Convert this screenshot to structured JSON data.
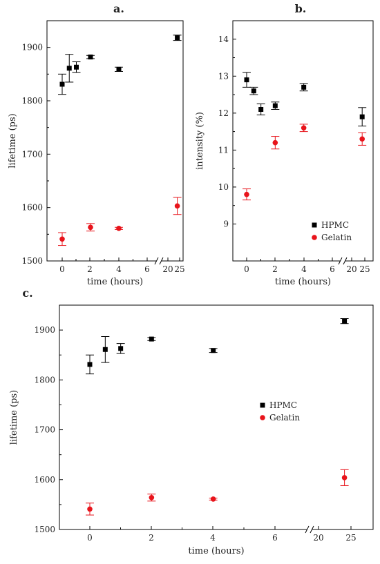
{
  "chart_data": [
    {
      "panel": "a.",
      "type": "scatter",
      "xlabel": "time (hours)",
      "ylabel": "lifetime (ps)",
      "ylim": [
        1500,
        1950
      ],
      "x_ticks": [
        "0",
        "2",
        "4",
        "6",
        "20",
        "25"
      ],
      "y_ticks": [
        1500,
        1600,
        1700,
        1800,
        1900
      ],
      "broken_x_axis": true,
      "error_bars": true,
      "series": [
        {
          "color": "#000000",
          "marker": "square",
          "points": [
            {
              "x": 0,
              "y": 1831,
              "err": 19
            },
            {
              "x": 0.5,
              "y": 1861,
              "err": 26
            },
            {
              "x": 1,
              "y": 1863,
              "err": 10
            },
            {
              "x": 2,
              "y": 1882,
              "err": 3
            },
            {
              "x": 4,
              "y": 1859,
              "err": 4
            },
            {
              "x": 24,
              "y": 1918,
              "err": 5
            }
          ]
        },
        {
          "color": "#e8141b",
          "marker": "circle",
          "points": [
            {
              "x": 0,
              "y": 1541,
              "err": 12
            },
            {
              "x": 2,
              "y": 1563,
              "err": 7
            },
            {
              "x": 4,
              "y": 1561,
              "err": 2
            },
            {
              "x": 24,
              "y": 1603,
              "err": 16
            }
          ]
        }
      ]
    },
    {
      "panel": "b.",
      "type": "scatter",
      "xlabel": "time (hours)",
      "ylabel": "intensity (%)",
      "ylim": [
        8,
        14.5
      ],
      "x_ticks": [
        "0",
        "2",
        "4",
        "6",
        "20",
        "25"
      ],
      "y_ticks": [
        9,
        10,
        11,
        12,
        13,
        14
      ],
      "broken_x_axis": true,
      "error_bars": true,
      "legend_position": "bottom-right",
      "series": [
        {
          "name": "HPMC",
          "color": "#000000",
          "marker": "square",
          "points": [
            {
              "x": 0,
              "y": 12.9,
              "err": 0.2
            },
            {
              "x": 0.5,
              "y": 12.6,
              "err": 0.1
            },
            {
              "x": 1,
              "y": 12.1,
              "err": 0.15
            },
            {
              "x": 2,
              "y": 12.2,
              "err": 0.1
            },
            {
              "x": 4,
              "y": 12.7,
              "err": 0.1
            },
            {
              "x": 24,
              "y": 11.9,
              "err": 0.25
            }
          ]
        },
        {
          "name": "Gelatin",
          "color": "#e8141b",
          "marker": "circle",
          "points": [
            {
              "x": 0,
              "y": 9.8,
              "err": 0.15
            },
            {
              "x": 2,
              "y": 11.2,
              "err": 0.17
            },
            {
              "x": 4,
              "y": 11.6,
              "err": 0.1
            },
            {
              "x": 24,
              "y": 11.3,
              "err": 0.17
            }
          ]
        }
      ]
    },
    {
      "panel": "c.",
      "type": "scatter",
      "xlabel": "time (hours)",
      "ylabel": "lifetime (ps)",
      "ylim": [
        1500,
        1950
      ],
      "x_ticks": [
        "0",
        "2",
        "4",
        "6",
        "20",
        "25"
      ],
      "y_ticks": [
        1500,
        1600,
        1700,
        1800,
        1900
      ],
      "broken_x_axis": true,
      "error_bars": true,
      "legend_position": "center",
      "series": [
        {
          "name": "HPMC",
          "color": "#000000",
          "marker": "square",
          "points": [
            {
              "x": 0,
              "y": 1831,
              "err": 19
            },
            {
              "x": 0.5,
              "y": 1861,
              "err": 26
            },
            {
              "x": 1,
              "y": 1863,
              "err": 10
            },
            {
              "x": 2,
              "y": 1882,
              "err": 3
            },
            {
              "x": 4,
              "y": 1859,
              "err": 4
            },
            {
              "x": 24,
              "y": 1918,
              "err": 5
            }
          ]
        },
        {
          "name": "Gelatin",
          "color": "#e8141b",
          "marker": "circle",
          "points": [
            {
              "x": 0,
              "y": 1541,
              "err": 12
            },
            {
              "x": 2,
              "y": 1564,
              "err": 7
            },
            {
              "x": 4,
              "y": 1561,
              "err": 2
            },
            {
              "x": 24,
              "y": 1604,
              "err": 16
            }
          ]
        }
      ]
    }
  ]
}
